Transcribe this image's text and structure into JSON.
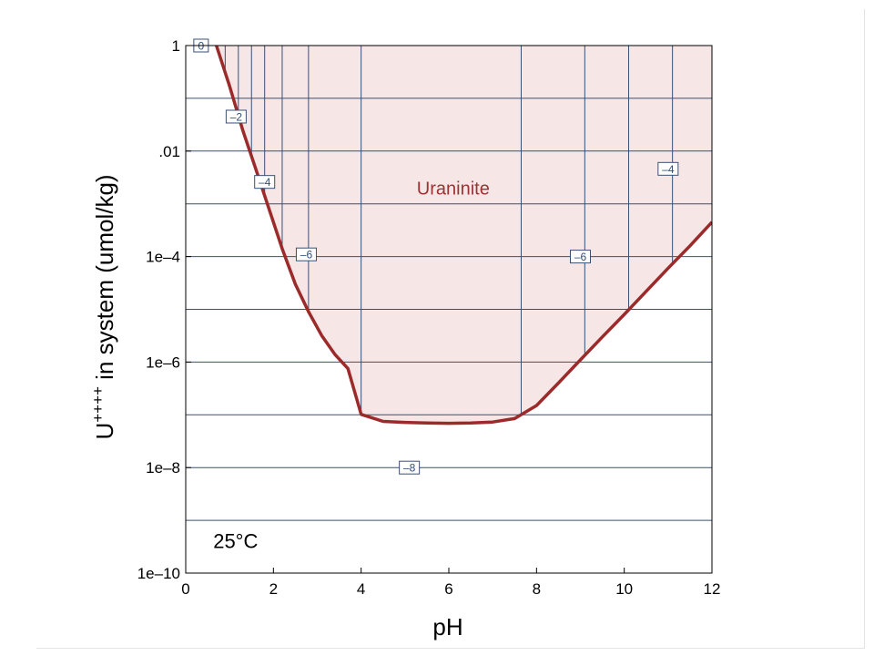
{
  "chart_data": {
    "type": "line",
    "title": "",
    "xlabel": "pH",
    "ylabel": {
      "base": "U",
      "superscript": "++++",
      "rest": " in system (umol/kg)"
    },
    "xlim": [
      0,
      12
    ],
    "ylim": [
      1e-10,
      1
    ],
    "yscale": "log",
    "x_ticks": [
      0,
      2,
      4,
      6,
      8,
      10,
      12
    ],
    "x_tick_labels": [
      "0",
      "2",
      "4",
      "6",
      "8",
      "10",
      "12"
    ],
    "y_ticks": [
      1,
      0.01,
      0.0001,
      1e-06,
      1e-08,
      1e-10
    ],
    "y_tick_labels": [
      "1",
      ".01",
      "1e–4",
      "1e–6",
      "1e–8",
      "1e–10"
    ],
    "grid": true,
    "temperature_label": "25°C",
    "field_label": "Uraninite",
    "colors": {
      "boundary": "#9b2b2b",
      "fill": "#f7e6e6",
      "contour": "#3b5071",
      "field_text": "#9b3333"
    },
    "boundary": {
      "x": [
        0.7,
        1.0,
        1.3,
        1.6,
        1.9,
        2.2,
        2.5,
        2.8,
        3.1,
        3.4,
        3.7,
        4.0,
        4.5,
        5.0,
        5.5,
        6.0,
        6.5,
        7.0,
        7.5,
        8.0,
        8.5,
        9.0,
        9.5,
        10.0,
        10.5,
        11.0,
        11.5,
        12.0
      ],
      "y": [
        1,
        0.17,
        0.025,
        0.0045,
        0.0008,
        0.00014,
        3e-05,
        9e-06,
        3.2e-06,
        1.4e-06,
        7.5e-07,
        1.02e-07,
        7.5e-08,
        7.2e-08,
        7e-08,
        6.9e-08,
        7e-08,
        7.3e-08,
        8.5e-08,
        1.5e-07,
        4e-07,
        1.1e-06,
        3e-06,
        8e-06,
        2.2e-05,
        6e-05,
        0.00016,
        0.00045
      ]
    },
    "vertical_contours_x": [
      0.9,
      1.2,
      1.5,
      1.8,
      2.2,
      2.8,
      4.0,
      7.65,
      9.1,
      10.1,
      11.1
    ],
    "horizontal_contours_y": [
      1,
      0.1,
      0.01,
      0.001,
      0.0001,
      1e-05,
      1e-06,
      1e-07,
      1e-08,
      1e-09
    ],
    "contour_labels": [
      {
        "text": "0",
        "x": 0.35,
        "y": 1
      },
      {
        "text": "–2",
        "x": 1.15,
        "y": 0.045
      },
      {
        "text": "–4",
        "x": 1.8,
        "y": 0.0026
      },
      {
        "text": "–6",
        "x": 2.75,
        "y": 0.00011
      },
      {
        "text": "–4",
        "x": 11.0,
        "y": 0.0046
      },
      {
        "text": "–6",
        "x": 9.0,
        "y": 0.0001
      },
      {
        "text": "–8",
        "x": 5.1,
        "y": 1e-08
      }
    ],
    "field_label_pos": {
      "x": 6.1,
      "y": 0.0015
    },
    "temperature_label_pos": {
      "x": 1.25,
      "y": 3e-10
    }
  }
}
